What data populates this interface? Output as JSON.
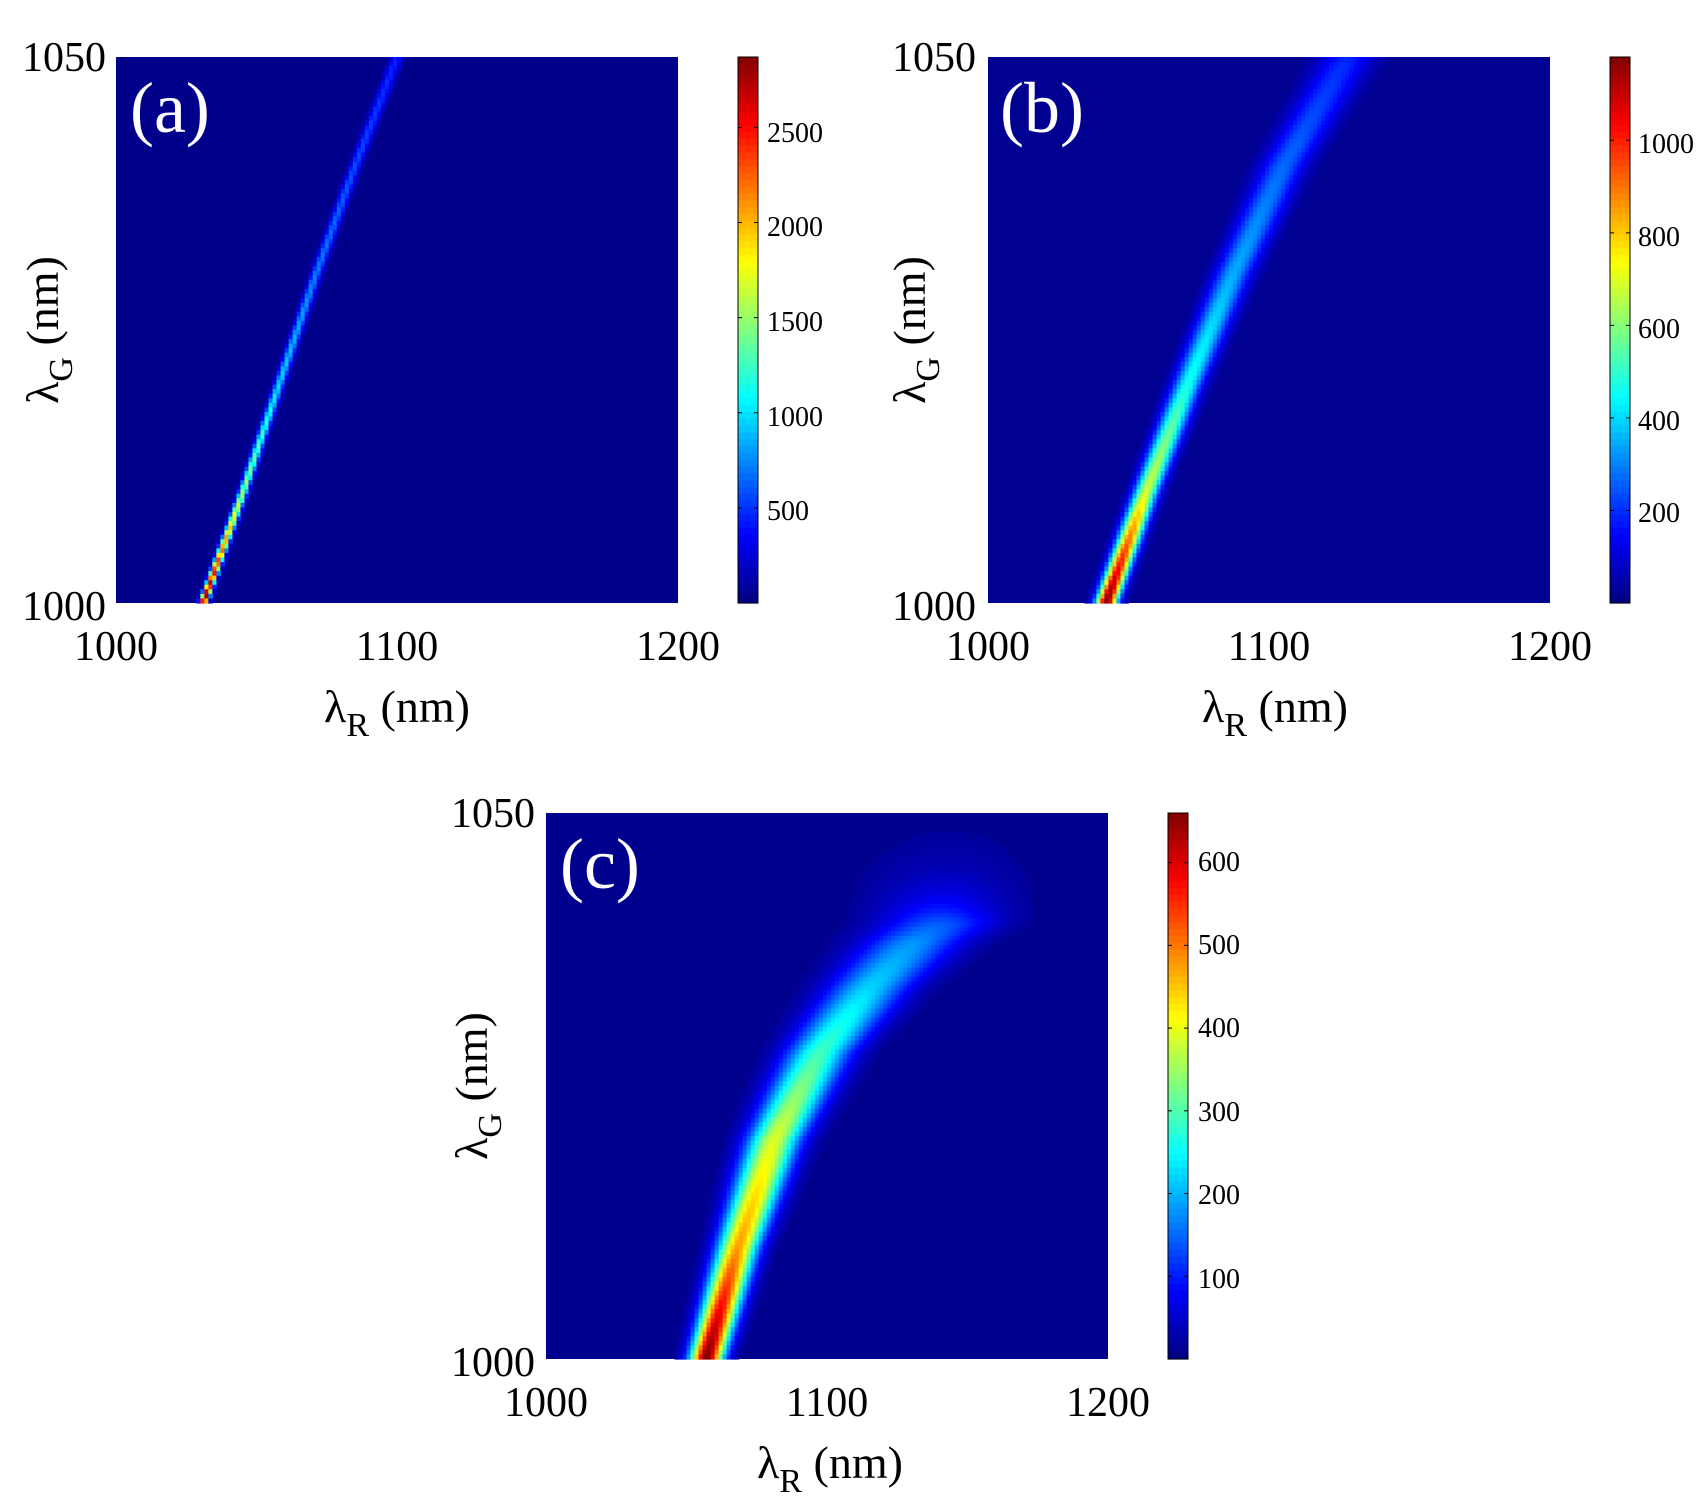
{
  "chart_data": [
    {
      "type": "heatmap",
      "panel_label": "(a)",
      "xlabel": "λ",
      "xlabel_sub": "R",
      "xlabel_unit": " (nm)",
      "ylabel": "λ",
      "ylabel_sub": "G",
      "ylabel_unit": " (nm)",
      "xlim": [
        1000,
        1200
      ],
      "ylim": [
        1000,
        1050
      ],
      "xticks": [
        1000,
        1100,
        1200
      ],
      "xtick_labels": [
        "1000",
        "1100",
        "1200"
      ],
      "yticks": [
        1000,
        1050
      ],
      "ytick_labels": [
        "1000",
        "1050"
      ],
      "colorbar": {
        "range": [
          0,
          2870
        ],
        "ticks": [
          500,
          1000,
          1500,
          2000,
          2500
        ],
        "tick_labels": [
          "500",
          "1000",
          "1500",
          "2000",
          "2500"
        ],
        "colormap": "jet"
      },
      "ridge": {
        "points": [
          [
            1031,
            1000
          ],
          [
            1045,
            1010
          ],
          [
            1058,
            1020
          ],
          [
            1071,
            1030
          ],
          [
            1085,
            1040
          ],
          [
            1100,
            1050
          ]
        ],
        "peak_values": [
          2870,
          1500,
          950,
          700,
          550,
          420
        ],
        "widths_nm": [
          1.0,
          1.1,
          1.2,
          1.3,
          1.4,
          1.6
        ],
        "background": 30
      }
    },
    {
      "type": "heatmap",
      "panel_label": "(b)",
      "xlabel": "λ",
      "xlabel_sub": "R",
      "xlabel_unit": " (nm)",
      "ylabel": "λ",
      "ylabel_sub": "G",
      "ylabel_unit": " (nm)",
      "xlim": [
        1000,
        1200
      ],
      "ylim": [
        1000,
        1050
      ],
      "xticks": [
        1000,
        1100,
        1200
      ],
      "xtick_labels": [
        "1000",
        "1100",
        "1200"
      ],
      "yticks": [
        1000,
        1050
      ],
      "ytick_labels": [
        "1000",
        "1050"
      ],
      "colorbar": {
        "range": [
          0,
          1180
        ],
        "ticks": [
          200,
          400,
          600,
          800,
          1000
        ],
        "tick_labels": [
          "200",
          "400",
          "600",
          "800",
          "1000"
        ],
        "colormap": "jet"
      },
      "ridge": {
        "points": [
          [
            1042,
            1000
          ],
          [
            1056,
            1010
          ],
          [
            1071,
            1020
          ],
          [
            1087,
            1030
          ],
          [
            1105,
            1040
          ],
          [
            1128,
            1050
          ]
        ],
        "peak_values": [
          1180,
          680,
          450,
          330,
          250,
          170
        ],
        "widths_nm": [
          2.6,
          3.0,
          3.6,
          4.4,
          5.4,
          6.6
        ],
        "background": 20
      }
    },
    {
      "type": "heatmap",
      "panel_label": "(c)",
      "xlabel": "λ",
      "xlabel_sub": "R",
      "xlabel_unit": " (nm)",
      "ylabel": "λ",
      "ylabel_sub": "G",
      "ylabel_unit": " (nm)",
      "xlim": [
        1000,
        1200
      ],
      "ylim": [
        1000,
        1050
      ],
      "xticks": [
        1000,
        1100,
        1200
      ],
      "xtick_labels": [
        "1000",
        "1100",
        "1200"
      ],
      "yticks": [
        1000,
        1050
      ],
      "ytick_labels": [
        "1000",
        "1050"
      ],
      "colorbar": {
        "range": [
          0,
          660
        ],
        "ticks": [
          100,
          200,
          300,
          400,
          500,
          600
        ],
        "tick_labels": [
          "100",
          "200",
          "300",
          "400",
          "500",
          "600"
        ],
        "colormap": "jet"
      },
      "ridge": {
        "points": [
          [
            1057,
            1000
          ],
          [
            1068,
            1010
          ],
          [
            1081,
            1020
          ],
          [
            1097,
            1028
          ],
          [
            1115,
            1034
          ],
          [
            1130,
            1038
          ],
          [
            1140,
            1040
          ]
        ],
        "peak_values": [
          660,
          470,
          380,
          280,
          210,
          170,
          130
        ],
        "widths_nm": [
          4,
          5,
          6.5,
          8,
          10,
          12,
          14
        ],
        "background": 10
      }
    }
  ]
}
